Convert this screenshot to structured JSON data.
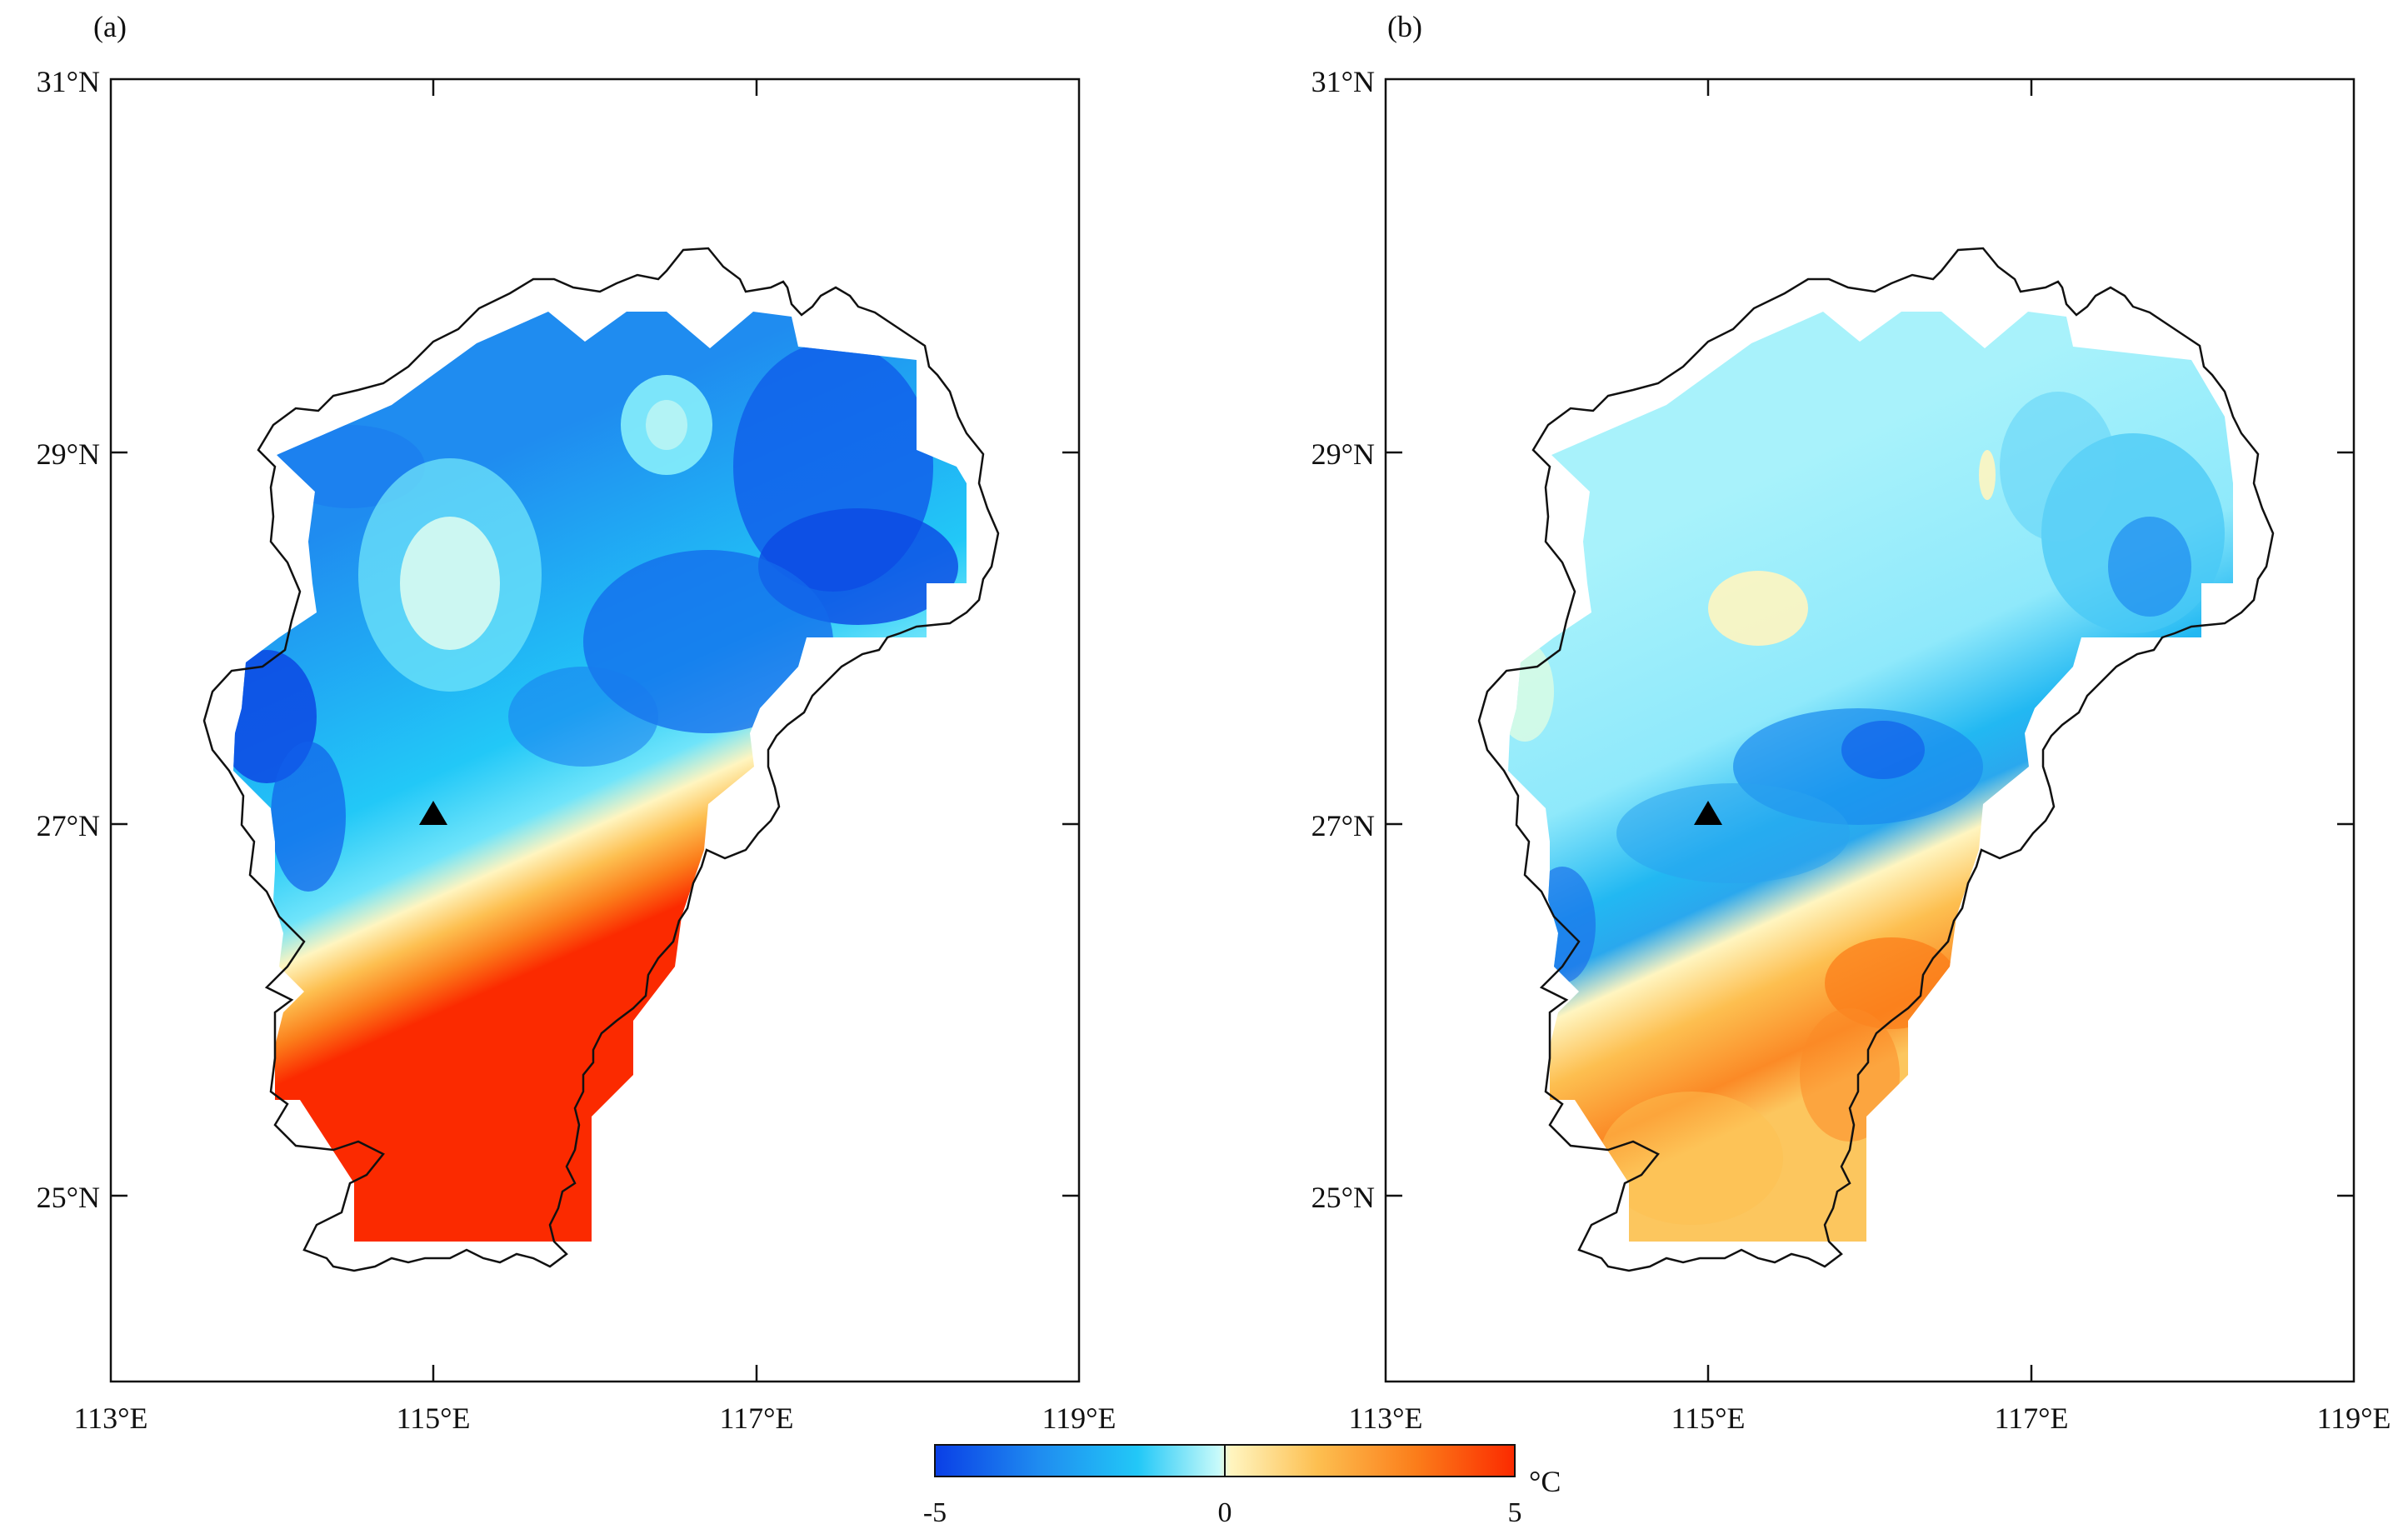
{
  "figure": {
    "panels": [
      {
        "label": "(a)",
        "xticks": [
          "113°E",
          "115°E",
          "117°E",
          "119°E"
        ],
        "yticks": [
          "31°N",
          "29°N",
          "27°N",
          "25°N"
        ],
        "station_marker": "triangle",
        "field": "anomaly-a"
      },
      {
        "label": "(b)",
        "xticks": [
          "113°E",
          "115°E",
          "117°E",
          "119°E"
        ],
        "yticks": [
          "31°N",
          "29°N",
          "27°N",
          "25°N"
        ],
        "station_marker": "triangle",
        "field": "anomaly-b"
      }
    ],
    "colorbar": {
      "min_label": "-5",
      "mid_label": "0",
      "max_label": "5",
      "unit": "°C",
      "colors": [
        "#0a3fe6",
        "#1f8cf0",
        "#22c8f7",
        "#c8fafa",
        "#fff5c0",
        "#fdbf50",
        "#fb7d1a",
        "#fb2a00"
      ]
    }
  },
  "chart_data": {
    "type": "heatmap",
    "title": "",
    "xlabel": "",
    "ylabel": "",
    "xlim": [
      113,
      119
    ],
    "ylim": [
      24,
      31
    ],
    "value_range": [
      -5,
      5
    ],
    "unit": "°C",
    "marker": {
      "lon": 114.9,
      "lat": 27.05
    },
    "panels": [
      "(a)",
      "(b)"
    ]
  }
}
